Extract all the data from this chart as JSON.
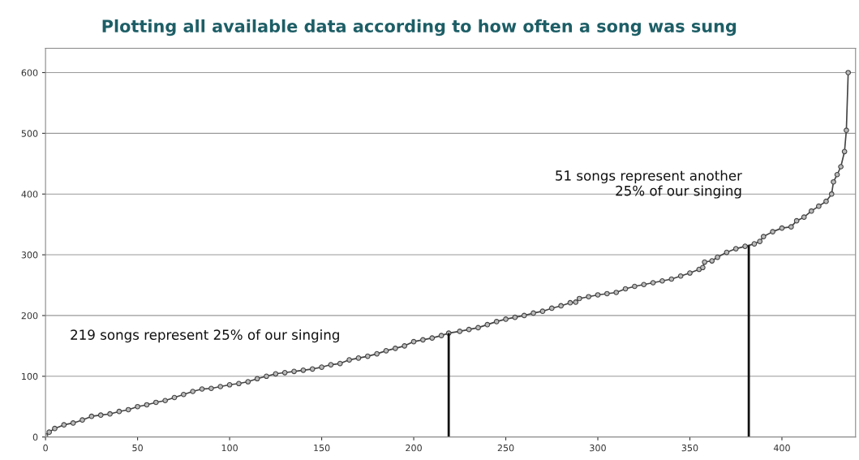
{
  "chart_data": {
    "type": "line",
    "title": "Plotting all available data according to how often a song was sung",
    "series": [
      {
        "color": "#444444",
        "x": [
          0,
          2,
          5,
          10,
          15,
          20,
          25,
          30,
          35,
          40,
          45,
          50,
          55,
          60,
          65,
          70,
          75,
          80,
          85,
          90,
          95,
          100,
          105,
          110,
          115,
          120,
          125,
          130,
          135,
          140,
          145,
          150,
          155,
          160,
          165,
          170,
          175,
          180,
          185,
          190,
          195,
          200,
          205,
          210,
          215,
          219,
          225,
          230,
          235,
          240,
          245,
          250,
          255,
          260,
          265,
          270,
          275,
          280,
          285,
          288,
          290,
          295,
          300,
          305,
          310,
          315,
          320,
          325,
          330,
          335,
          340,
          345,
          350,
          355,
          357,
          358,
          362,
          365,
          370,
          375,
          380,
          385,
          388,
          390,
          395,
          400,
          405,
          408,
          412,
          416,
          420,
          424,
          427,
          428,
          430,
          432,
          434,
          435,
          436
        ],
        "values": [
          2,
          8,
          14,
          20,
          23,
          28,
          34,
          36,
          38,
          42,
          45,
          50,
          53,
          57,
          60,
          65,
          70,
          75,
          79,
          80,
          83,
          86,
          88,
          91,
          96,
          100,
          104,
          106,
          108,
          110,
          112,
          115,
          119,
          121,
          127,
          130,
          133,
          137,
          142,
          146,
          150,
          157,
          160,
          163,
          167,
          171,
          174,
          177,
          180,
          185,
          190,
          194,
          197,
          200,
          204,
          207,
          212,
          216,
          221,
          222,
          228,
          231,
          234,
          236,
          238,
          244,
          248,
          251,
          254,
          257,
          260,
          265,
          270,
          276,
          279,
          288,
          290,
          296,
          304,
          310,
          314,
          318,
          322,
          330,
          338,
          344,
          346,
          356,
          362,
          372,
          380,
          388,
          400,
          420,
          432,
          445,
          470,
          505,
          600
        ]
      }
    ],
    "xlim": [
      0,
      440
    ],
    "xticks": [
      0,
      50,
      100,
      150,
      200,
      250,
      300,
      350,
      400
    ],
    "ylim": [
      0,
      640
    ],
    "yticks": [
      0,
      100,
      200,
      300,
      400,
      500,
      600
    ],
    "grid": "y",
    "marker": "circle",
    "line_style": "solid",
    "ref_lines": [
      {
        "axis": "x",
        "value": 219,
        "color": "#111111"
      },
      {
        "axis": "x",
        "value": 382,
        "color": "#111111"
      }
    ],
    "annotations": [
      "219 songs represent 25% of our singing",
      "51 songs represent another\n25% of our singing"
    ]
  }
}
